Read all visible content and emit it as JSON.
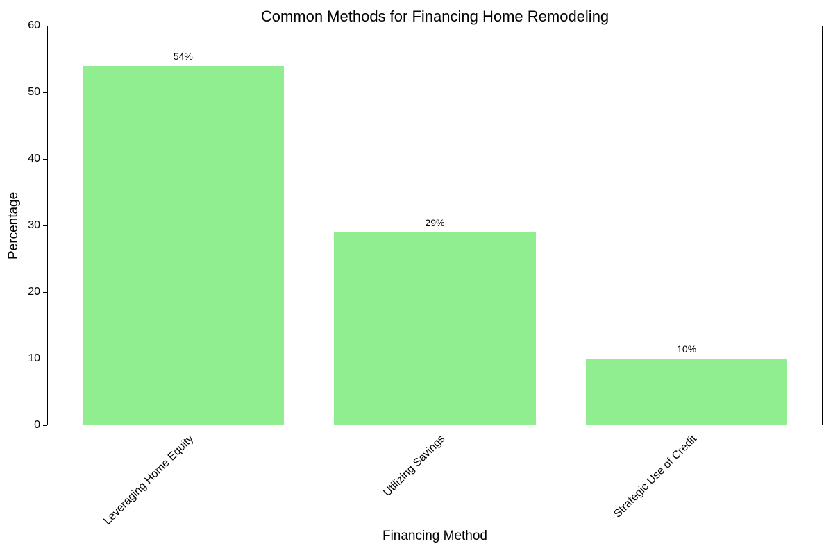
{
  "chart_data": {
    "type": "bar",
    "title": "Common Methods for Financing Home Remodeling",
    "xlabel": "Financing Method",
    "ylabel": "Percentage",
    "categories": [
      "Leveraging Home Equity",
      "Utilizing Savings",
      "Strategic Use of Credit"
    ],
    "values": [
      54,
      29,
      10
    ],
    "value_labels": [
      "54%",
      "29%",
      "10%"
    ],
    "ylim": [
      0,
      60
    ],
    "yticks": [
      0,
      10,
      20,
      30,
      40,
      50,
      60
    ],
    "bar_color": "#90EE90",
    "bar_width_fraction": 0.8,
    "x_tick_rotation_deg": 45,
    "axis_color": "#000000",
    "text_color": "#000000",
    "background_color": "#ffffff",
    "grid": false,
    "legend_position": "none"
  }
}
